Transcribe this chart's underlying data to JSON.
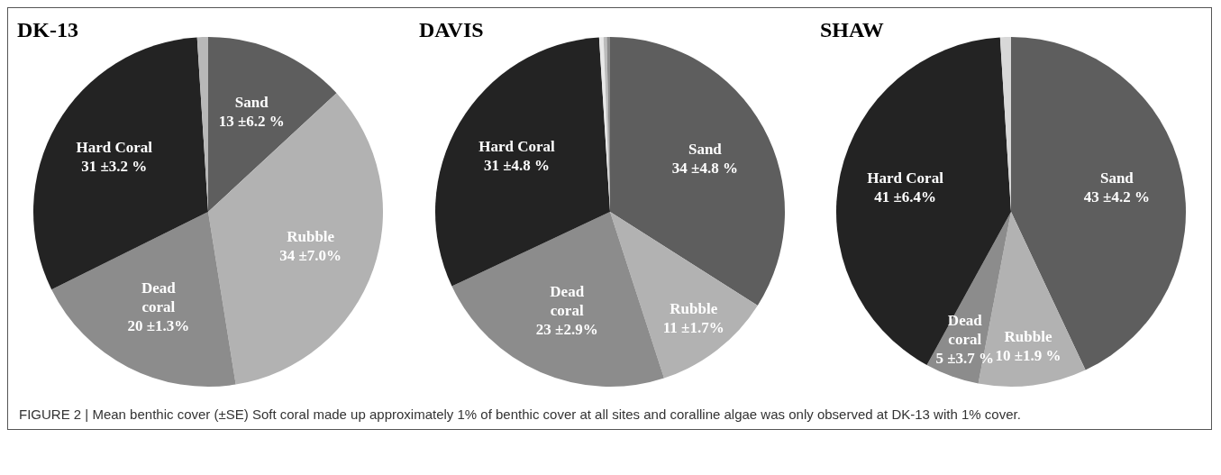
{
  "chart_data": [
    {
      "type": "pie",
      "title": "DK-13",
      "categories": [
        "Sand",
        "Rubble",
        "Dead coral",
        "Hard Coral",
        null
      ],
      "values": [
        13,
        34,
        20,
        31,
        1
      ],
      "colors": [
        "#5e5e5e",
        "#b2b2b2",
        "#8c8c8c",
        "#232323",
        "#b8b8b8"
      ],
      "value_labels": [
        "13 ±6.2 %",
        "34 ±7.0%",
        "20 ±1.3%",
        "31 ±3.2 %",
        null
      ],
      "legend": false,
      "annotations": [
        "FIGURE 2 | Mean benthic cover (±SE) Soft coral made up approximately 1% of benthic cover at all sites and coralline algae was only observed at DK-13 with 1% cover."
      ]
    },
    {
      "type": "pie",
      "title": "DAVIS",
      "categories": [
        "Sand",
        "Rubble",
        "Dead coral",
        "Hard Coral",
        null,
        null,
        null
      ],
      "values": [
        34,
        11,
        23,
        31,
        0.4,
        0.3,
        0.3
      ],
      "colors": [
        "#5e5e5e",
        "#b2b2b2",
        "#8c8c8c",
        "#232323",
        "#e8e8e8",
        "#bcbcbc",
        "#8c8c8c"
      ],
      "value_labels": [
        "34 ±4.8 %",
        "11 ±1.7%",
        "23 ±2.9%",
        "31 ±4.8 %",
        null,
        null,
        null
      ],
      "legend": false
    },
    {
      "type": "pie",
      "title": "SHAW",
      "categories": [
        "Sand",
        "Rubble",
        "Dead coral",
        "Hard Coral",
        null
      ],
      "values": [
        43,
        10,
        5,
        41,
        1
      ],
      "colors": [
        "#5e5e5e",
        "#b2b2b2",
        "#8c8c8c",
        "#232323",
        "#d8d8d8"
      ],
      "value_labels": [
        "43 ±4.2 %",
        "10 ±1.9 %",
        "5 ±3.7 %",
        "41 ±6.4%",
        null
      ],
      "legend": false
    }
  ]
}
